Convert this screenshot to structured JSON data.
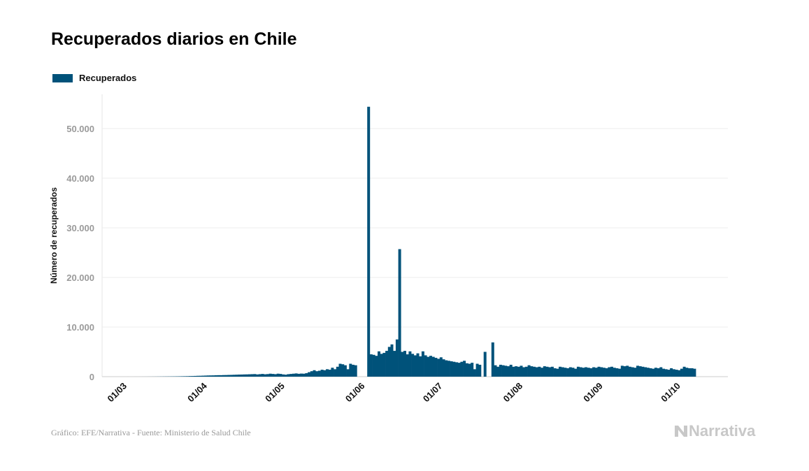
{
  "chart_data": {
    "type": "bar",
    "title": "Recuperados diarios en Chile",
    "ylabel": "Número de recuperados",
    "xlabel": "",
    "start_date": "2020-03-01",
    "x_tick_labels": [
      "01/03",
      "01/04",
      "01/05",
      "01/06",
      "01/07",
      "01/08",
      "01/09",
      "01/10"
    ],
    "y_ticks": [
      0,
      10000,
      20000,
      30000,
      40000,
      50000
    ],
    "y_tick_labels": [
      "0",
      "10.000",
      "20.000",
      "30.000",
      "40.000",
      "50.000"
    ],
    "ylim": [
      0,
      57000
    ],
    "grid": "horizontal",
    "legend_position": "top-left",
    "series": [
      {
        "name": "Recuperados",
        "color": "#00527a",
        "values": [
          0,
          0,
          0,
          1,
          0,
          0,
          2,
          1,
          3,
          4,
          5,
          8,
          10,
          12,
          15,
          20,
          25,
          30,
          35,
          40,
          45,
          50,
          60,
          70,
          80,
          90,
          100,
          120,
          130,
          150,
          170,
          180,
          200,
          220,
          240,
          250,
          260,
          280,
          300,
          300,
          320,
          330,
          350,
          360,
          380,
          400,
          420,
          430,
          450,
          460,
          480,
          500,
          520,
          450,
          500,
          550,
          480,
          520,
          600,
          550,
          500,
          600,
          550,
          450,
          400,
          500,
          550,
          600,
          650,
          580,
          620,
          600,
          700,
          900,
          1100,
          1300,
          1100,
          1200,
          1400,
          1300,
          1500,
          1400,
          1800,
          1500,
          2000,
          2600,
          2500,
          2300,
          1500,
          2600,
          2400,
          2300,
          null,
          null,
          null,
          null,
          54400,
          4500,
          4400,
          4200,
          5100,
          4600,
          4800,
          5200,
          6000,
          6500,
          5200,
          7500,
          25700,
          5000,
          5200,
          4500,
          5100,
          4600,
          4300,
          4700,
          4100,
          5100,
          4300,
          4000,
          4200,
          4000,
          3800,
          3600,
          3900,
          3500,
          3300,
          3200,
          3100,
          3000,
          2900,
          2800,
          3000,
          3200,
          2700,
          2600,
          2800,
          1500,
          2600,
          2400,
          null,
          5000,
          null,
          null,
          6900,
          2300,
          2000,
          2400,
          2300,
          2200,
          2100,
          2400,
          2000,
          2100,
          2000,
          2200,
          1900,
          2000,
          2300,
          2100,
          2000,
          1900,
          2000,
          1800,
          2100,
          2000,
          1900,
          2000,
          1700,
          1600,
          2000,
          1900,
          1800,
          1700,
          1900,
          1800,
          1600,
          2000,
          1900,
          1800,
          1900,
          1800,
          1700,
          1900,
          1800,
          2000,
          1900,
          1800,
          1700,
          1900,
          2000,
          1800,
          1700,
          1600,
          2200,
          2100,
          2200,
          2000,
          1900,
          1800,
          2200,
          2100,
          2000,
          1900,
          1800,
          1700,
          1600,
          1800,
          1700,
          1900,
          1600,
          1500,
          1400,
          1700,
          1500,
          1400,
          1300,
          1600,
          2000,
          1800,
          1700,
          1700,
          1600
        ]
      }
    ]
  },
  "footer": "Gráfico: EFE/Narrativa - Fuente: Ministerio de Salud Chile",
  "logo_text": "Narrativa"
}
